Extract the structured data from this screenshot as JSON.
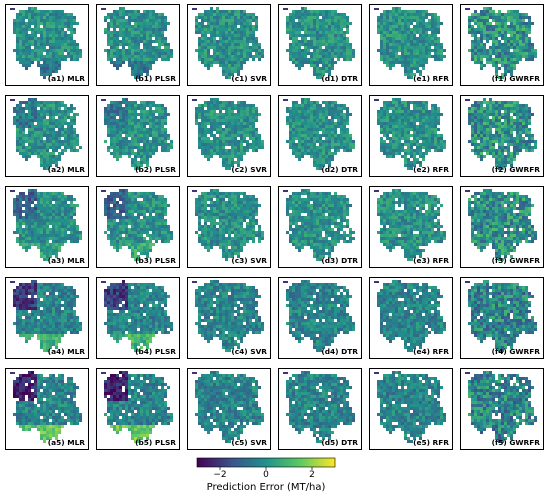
{
  "chart_data": {
    "type": "heatmap",
    "layout": {
      "rows": 5,
      "cols": 6
    },
    "panel_labels": [
      [
        "(a1) MLR",
        "(b1) PLSR",
        "(c1) SVR",
        "(d1) DTR",
        "(e1) RFR",
        "(f1) GWRFR"
      ],
      [
        "(a2) MLR",
        "(b2) PLSR",
        "(c2) SVR",
        "(d2) DTR",
        "(e2) RFR",
        "(f2) GWRFR"
      ],
      [
        "(a3) MLR",
        "(b3) PLSR",
        "(c3) SVR",
        "(d3) DTR",
        "(e3) RFR",
        "(f3) GWRFR"
      ],
      [
        "(a4) MLR",
        "(b4) PLSR",
        "(c4) SVR",
        "(d4) DTR",
        "(e4) RFR",
        "(f4) GWRFR"
      ],
      [
        "(a5) MLR",
        "(b5) PLSR",
        "(c5) SVR",
        "(d5) DTR",
        "(e5) RFR",
        "(f5) GWRFR"
      ]
    ],
    "colorbar": {
      "label": "Prediction Error (MT/ha)",
      "range": [
        -3,
        3
      ],
      "ticks": [
        -2,
        0,
        2
      ],
      "tick_labels": [
        "−2",
        "0",
        "2"
      ],
      "colormap": "viridis",
      "colors": [
        "#440154",
        "#3b528b",
        "#21918c",
        "#5ec962",
        "#fde725"
      ]
    }
  }
}
